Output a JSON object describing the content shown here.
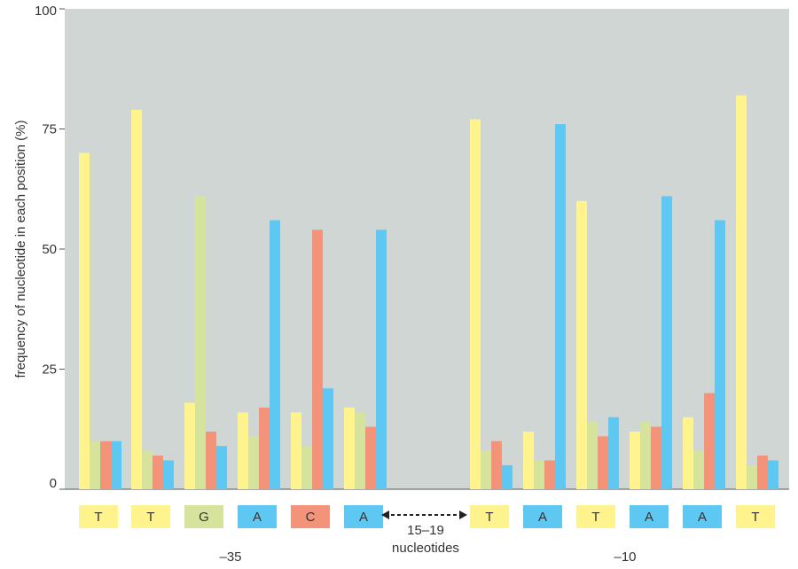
{
  "chart_data": {
    "type": "bar",
    "ylabel": "frequency of nucleotide in each position (%)",
    "ylim": [
      0,
      100
    ],
    "yticks": [
      0,
      25,
      50,
      75,
      100
    ],
    "grid": false,
    "series_order": [
      "T",
      "G",
      "C",
      "A"
    ],
    "colors": {
      "T": "#fff38d",
      "G": "#d6e39c",
      "C": "#f2937a",
      "A": "#5ec8f2",
      "plot_bg": "#d0d6d4"
    },
    "categories": [
      "T",
      "T",
      "G",
      "A",
      "C",
      "A",
      "T",
      "A",
      "T",
      "A",
      "A",
      "T"
    ],
    "groups": [
      {
        "base": "T",
        "values": {
          "T": 70,
          "G": 10,
          "C": 10,
          "A": 10
        }
      },
      {
        "base": "T",
        "values": {
          "T": 79,
          "G": 8,
          "C": 7,
          "A": 6
        }
      },
      {
        "base": "G",
        "values": {
          "T": 18,
          "G": 61,
          "C": 12,
          "A": 9
        }
      },
      {
        "base": "A",
        "values": {
          "T": 16,
          "G": 11,
          "C": 17,
          "A": 56
        }
      },
      {
        "base": "C",
        "values": {
          "T": 16,
          "G": 9,
          "C": 54,
          "A": 21
        }
      },
      {
        "base": "A",
        "values": {
          "T": 17,
          "G": 16,
          "C": 13,
          "A": 54
        }
      },
      {
        "base": "T",
        "values": {
          "T": 77,
          "G": 8,
          "C": 10,
          "A": 5
        }
      },
      {
        "base": "A",
        "values": {
          "T": 12,
          "G": 6,
          "C": 6,
          "A": 76
        }
      },
      {
        "base": "T",
        "values": {
          "T": 60,
          "G": 14,
          "C": 11,
          "A": 15
        }
      },
      {
        "base": "A",
        "values": {
          "T": 12,
          "G": 14,
          "C": 13,
          "A": 61
        }
      },
      {
        "base": "A",
        "values": {
          "T": 15,
          "G": 8,
          "C": 20,
          "A": 56
        }
      },
      {
        "base": "T",
        "values": {
          "T": 82,
          "G": 5,
          "C": 7,
          "A": 6
        }
      }
    ],
    "annotations": {
      "spacer_line1": "15–19",
      "spacer_line2": "nucleotides",
      "region_minus35": "–35",
      "region_minus10": "–10"
    }
  }
}
